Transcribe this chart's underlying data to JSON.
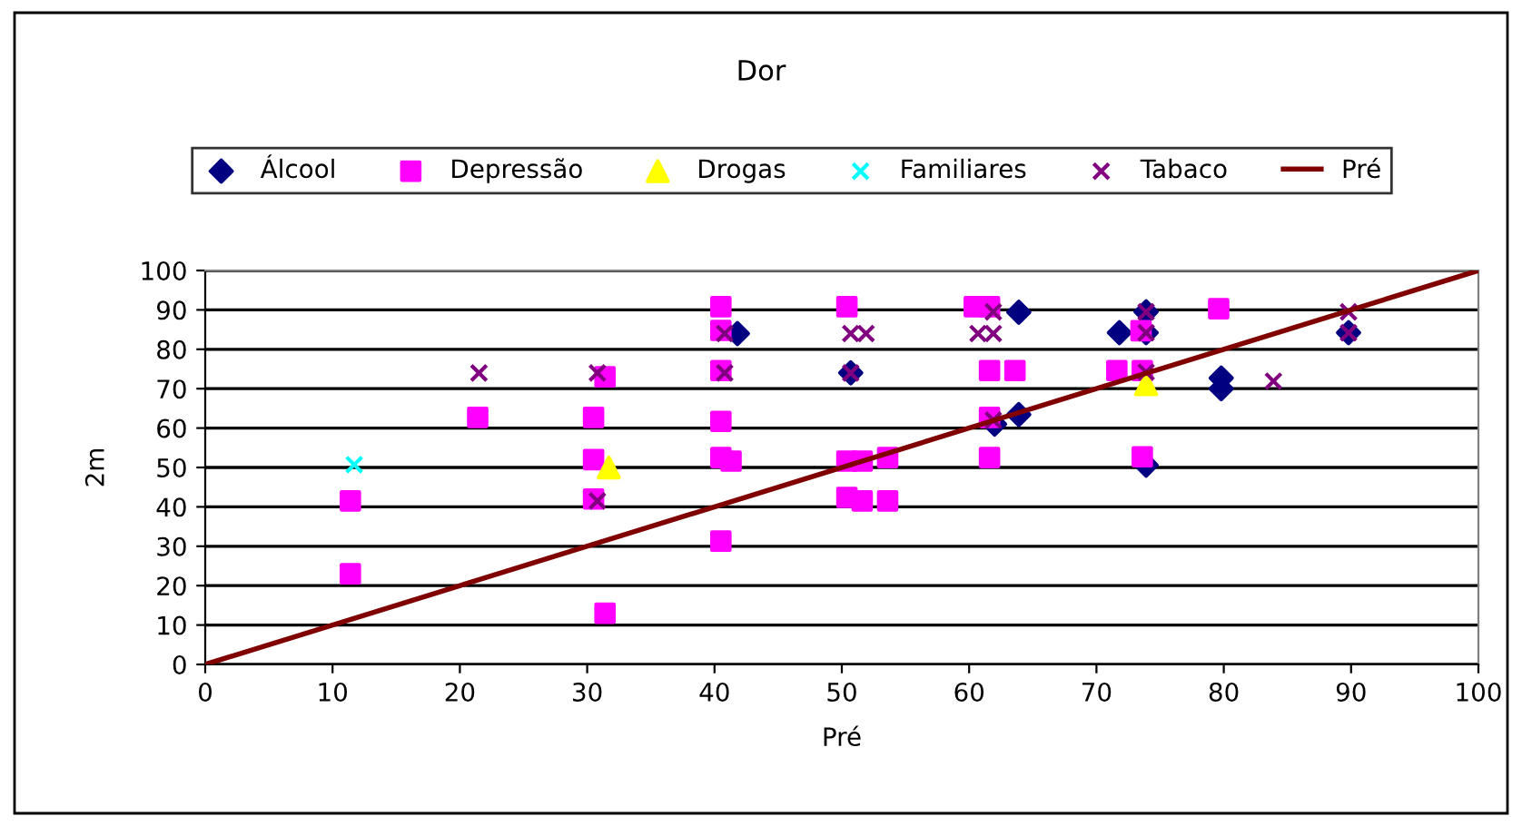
{
  "chart_data": {
    "type": "scatter",
    "title": "Dor",
    "xlabel": "Pré",
    "ylabel": "2m",
    "xlim": [
      0,
      100
    ],
    "ylim": [
      0,
      100
    ],
    "xticks": [
      0,
      10,
      20,
      30,
      40,
      50,
      60,
      70,
      80,
      90,
      100
    ],
    "yticks": [
      0,
      10,
      20,
      30,
      40,
      50,
      60,
      70,
      80,
      90,
      100
    ],
    "grid": "y",
    "legend": "top",
    "series": [
      {
        "name": "Álcool",
        "color": "#000080",
        "marker": "diamond",
        "x": [
          41.8,
          50.7,
          63.9,
          63.9,
          62,
          71.8,
          73.9,
          73.9,
          73.9,
          79.8,
          79.8,
          89.8
        ],
        "values": [
          84,
          74,
          89.4,
          63.4,
          61,
          84.2,
          89.5,
          84.2,
          50.6,
          72.7,
          70,
          84.2
        ]
      },
      {
        "name": "Depressão",
        "color": "#ff00ff",
        "marker": "square",
        "x": [
          11.4,
          11.4,
          21.4,
          30.5,
          30.5,
          30.5,
          31.4,
          31.4,
          40.5,
          40.5,
          40.5,
          40.5,
          40.5,
          40.5,
          41.3,
          50.4,
          50.4,
          50.4,
          51.6,
          51.6,
          53.6,
          53.6,
          60.4,
          61.6,
          61.6,
          63.6,
          61.6,
          61.6,
          71.6,
          73.5,
          73.6,
          73.6,
          79.6
        ],
        "values": [
          41.5,
          23,
          62.7,
          62.7,
          52,
          42,
          73,
          13,
          90.8,
          84.8,
          74.6,
          61.7,
          52.5,
          31.3,
          51.6,
          90.8,
          51.6,
          42.4,
          51.6,
          41.5,
          52.5,
          41.5,
          90.8,
          90.8,
          74.6,
          74.6,
          62.7,
          52.5,
          74.6,
          84.7,
          74.6,
          52.7,
          90.3
        ]
      },
      {
        "name": "Drogas",
        "color": "#ffff00",
        "marker": "triangle",
        "x": [
          31.7,
          73.9
        ],
        "values": [
          50,
          71.1
        ]
      },
      {
        "name": "Familiares",
        "color": "#00ffff",
        "marker": "cross",
        "x": [
          11.7
        ],
        "values": [
          50.7
        ]
      },
      {
        "name": "Tabaco",
        "color": "#800080",
        "marker": "cross",
        "x": [
          21.5,
          30.8,
          30.8,
          40.8,
          40.8,
          50.7,
          51.9,
          50.7,
          60.7,
          61.9,
          61.9,
          61.9,
          73.9,
          73.9,
          73.9,
          83.9,
          89.8,
          89.8
        ],
        "values": [
          74,
          74,
          41.5,
          84,
          74,
          84,
          84,
          74,
          84,
          84,
          89.5,
          62,
          89.5,
          84.2,
          74.2,
          71.9,
          89.5,
          84.2
        ]
      },
      {
        "name": "Pré",
        "type": "line",
        "color": "#800000",
        "marker": "none",
        "line_style": "solid",
        "x": [
          0,
          100
        ],
        "values": [
          0,
          100
        ]
      }
    ]
  }
}
